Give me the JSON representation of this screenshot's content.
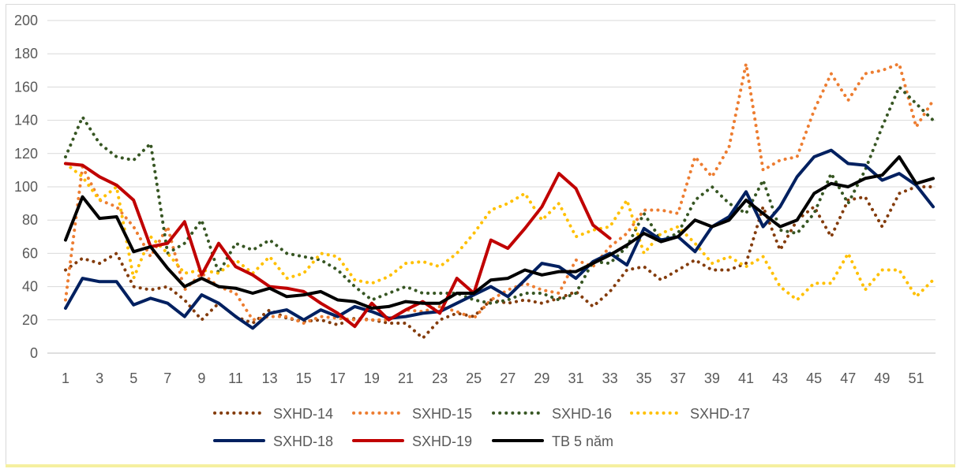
{
  "chart_data": {
    "type": "line",
    "title": "",
    "xlabel": "",
    "ylabel": "",
    "ylim": [
      0,
      200
    ],
    "y_ticks": [
      0,
      20,
      40,
      60,
      80,
      100,
      120,
      140,
      160,
      180,
      200
    ],
    "x_ticks": [
      1,
      3,
      5,
      7,
      9,
      11,
      13,
      15,
      17,
      19,
      21,
      23,
      25,
      27,
      29,
      31,
      33,
      35,
      37,
      39,
      41,
      43,
      45,
      47,
      49,
      51
    ],
    "x_range": [
      1,
      52
    ],
    "grid": "horizontal",
    "legend_position": "bottom",
    "series": [
      {
        "name": "SXHD-14",
        "color": "#843c0c",
        "style": "dotted",
        "x": [
          1,
          2,
          3,
          4,
          5,
          6,
          7,
          8,
          9,
          10,
          11,
          12,
          13,
          14,
          15,
          16,
          17,
          18,
          19,
          20,
          21,
          22,
          23,
          24,
          25,
          26,
          27,
          28,
          29,
          30,
          31,
          32,
          33,
          34,
          35,
          36,
          37,
          38,
          39,
          40,
          41,
          42,
          43,
          44,
          45,
          46,
          47,
          48,
          49,
          50,
          51,
          52
        ],
        "values": [
          50,
          57,
          54,
          60,
          40,
          38,
          40,
          32,
          20,
          30,
          22,
          18,
          26,
          21,
          19,
          20,
          17,
          21,
          20,
          18,
          18,
          9,
          20,
          24,
          22,
          32,
          30,
          32,
          30,
          33,
          37,
          28,
          37,
          50,
          52,
          44,
          50,
          56,
          50,
          50,
          54,
          88,
          62,
          80,
          88,
          70,
          92,
          94,
          76,
          96,
          100,
          100
        ]
      },
      {
        "name": "SXHD-15",
        "color": "#ed7d31",
        "style": "dotted",
        "x": [
          1,
          2,
          3,
          4,
          5,
          6,
          7,
          8,
          9,
          10,
          11,
          12,
          13,
          14,
          15,
          16,
          17,
          18,
          19,
          20,
          21,
          22,
          23,
          24,
          25,
          26,
          27,
          28,
          29,
          30,
          31,
          32,
          33,
          34,
          35,
          36,
          37,
          38,
          39,
          40,
          41,
          42,
          43,
          44,
          45,
          46,
          47,
          48,
          49,
          50,
          51,
          52
        ],
        "values": [
          32,
          112,
          92,
          88,
          76,
          58,
          76,
          38,
          48,
          40,
          36,
          20,
          22,
          22,
          18,
          22,
          21,
          20,
          20,
          20,
          26,
          25,
          28,
          25,
          21,
          32,
          38,
          42,
          38,
          36,
          56,
          52,
          64,
          72,
          86,
          86,
          84,
          118,
          106,
          124,
          174,
          110,
          116,
          118,
          146,
          168,
          152,
          168,
          170,
          174,
          136,
          152
        ]
      },
      {
        "name": "SXHD-16",
        "color": "#375623",
        "style": "dotted",
        "x": [
          1,
          2,
          3,
          4,
          5,
          6,
          7,
          8,
          9,
          10,
          11,
          12,
          13,
          14,
          15,
          16,
          17,
          18,
          19,
          20,
          21,
          22,
          23,
          24,
          25,
          26,
          27,
          28,
          29,
          30,
          31,
          32,
          33,
          34,
          35,
          36,
          37,
          38,
          39,
          40,
          41,
          42,
          43,
          44,
          45,
          46,
          47,
          48,
          49,
          50,
          51,
          52
        ],
        "values": [
          118,
          142,
          126,
          118,
          116,
          126,
          60,
          66,
          80,
          48,
          66,
          62,
          68,
          60,
          58,
          56,
          50,
          40,
          32,
          36,
          40,
          36,
          36,
          36,
          32,
          30,
          32,
          36,
          36,
          32,
          36,
          55,
          54,
          64,
          84,
          68,
          72,
          92,
          100,
          90,
          84,
          104,
          74,
          72,
          84,
          108,
          90,
          110,
          136,
          160,
          150,
          140
        ]
      },
      {
        "name": "SXHD-17",
        "color": "#ffc000",
        "style": "dotted",
        "x": [
          1,
          2,
          3,
          4,
          5,
          6,
          7,
          8,
          9,
          10,
          11,
          12,
          13,
          14,
          15,
          16,
          17,
          18,
          19,
          20,
          21,
          22,
          23,
          24,
          25,
          26,
          27,
          28,
          29,
          30,
          31,
          32,
          33,
          34,
          35,
          36,
          37,
          38,
          39,
          40,
          41,
          42,
          43,
          44,
          45,
          46,
          47,
          48,
          49,
          50,
          51,
          52
        ],
        "values": [
          114,
          106,
          92,
          100,
          45,
          70,
          60,
          48,
          50,
          48,
          56,
          48,
          58,
          45,
          48,
          60,
          58,
          44,
          42,
          46,
          54,
          55,
          52,
          60,
          72,
          86,
          90,
          96,
          80,
          90,
          70,
          74,
          76,
          92,
          60,
          72,
          76,
          66,
          54,
          58,
          52,
          58,
          40,
          32,
          42,
          42,
          60,
          38,
          50,
          50,
          34,
          44
        ]
      },
      {
        "name": "SXHD-18",
        "color": "#002060",
        "style": "solid",
        "x": [
          1,
          2,
          3,
          4,
          5,
          6,
          7,
          8,
          9,
          10,
          11,
          12,
          13,
          14,
          15,
          16,
          17,
          18,
          19,
          20,
          21,
          22,
          23,
          24,
          25,
          26,
          27,
          28,
          29,
          30,
          31,
          32,
          33,
          34,
          35,
          36,
          37,
          38,
          39,
          40,
          41,
          42,
          43,
          44,
          45,
          46,
          47,
          48,
          49,
          50,
          51,
          52
        ],
        "values": [
          27,
          45,
          43,
          43,
          29,
          33,
          30,
          22,
          35,
          30,
          22,
          15,
          24,
          26,
          20,
          26,
          22,
          28,
          25,
          21,
          22,
          24,
          25,
          30,
          35,
          40,
          34,
          44,
          54,
          52,
          45,
          55,
          60,
          53,
          75,
          68,
          70,
          61,
          76,
          82,
          97,
          76,
          88,
          106,
          118,
          122,
          114,
          113,
          104,
          108,
          101,
          88
        ]
      },
      {
        "name": "SXHD-19",
        "color": "#c00000",
        "style": "solid",
        "x": [
          1,
          2,
          3,
          4,
          5,
          6,
          7,
          8,
          9,
          10,
          11,
          12,
          13,
          14,
          15,
          16,
          17,
          18,
          19,
          20,
          21,
          22,
          23,
          24,
          25,
          26,
          27,
          28,
          29,
          30,
          31,
          32,
          33
        ],
        "values": [
          114,
          113,
          106,
          101,
          92,
          64,
          66,
          79,
          47,
          66,
          52,
          47,
          40,
          39,
          37,
          30,
          24,
          16,
          30,
          20,
          26,
          31,
          24,
          45,
          36,
          68,
          63,
          75,
          88,
          108,
          99,
          77,
          69
        ]
      },
      {
        "name": "TB 5 năm",
        "color": "#000000",
        "style": "solid",
        "x": [
          1,
          2,
          3,
          4,
          5,
          6,
          7,
          8,
          9,
          10,
          11,
          12,
          13,
          14,
          15,
          16,
          17,
          18,
          19,
          20,
          21,
          22,
          23,
          24,
          25,
          26,
          27,
          28,
          29,
          30,
          31,
          32,
          33,
          34,
          35,
          36,
          37,
          38,
          39,
          40,
          41,
          42,
          43,
          44,
          45,
          46,
          47,
          48,
          49,
          50,
          51,
          52
        ],
        "values": [
          68,
          94,
          81,
          82,
          61,
          64,
          51,
          40,
          45,
          40,
          39,
          36,
          39,
          34,
          35,
          37,
          32,
          31,
          27,
          28,
          31,
          30,
          30,
          36,
          36,
          44,
          45,
          50,
          47,
          49,
          49,
          54,
          59,
          65,
          72,
          67,
          70,
          80,
          76,
          80,
          92,
          84,
          76,
          80,
          96,
          102,
          100,
          105,
          107,
          118,
          102,
          105
        ]
      }
    ]
  }
}
